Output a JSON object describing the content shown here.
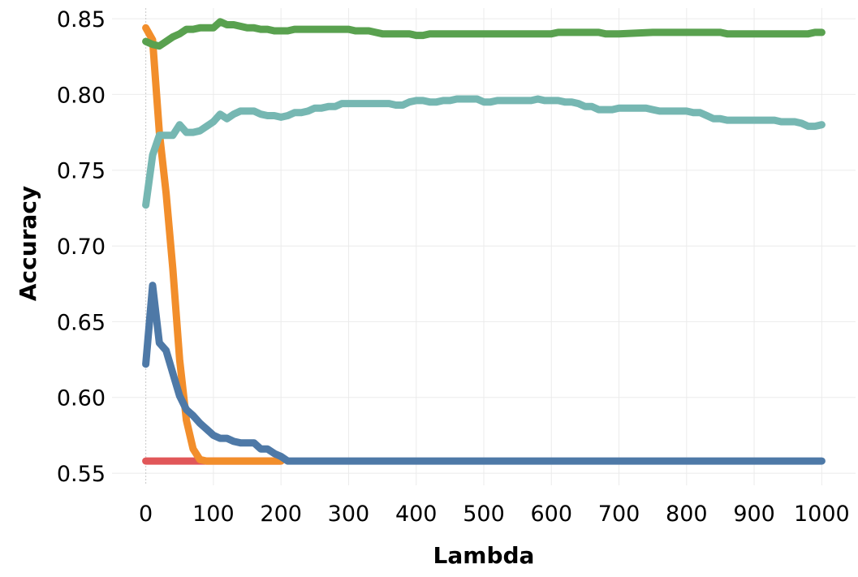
{
  "chart_data": {
    "type": "line",
    "title": "",
    "xlabel": "Lambda",
    "ylabel": "Accuracy",
    "xlim": [
      -50,
      1050
    ],
    "ylim": [
      0.542,
      0.857
    ],
    "xticks": [
      0,
      100,
      200,
      300,
      400,
      500,
      600,
      700,
      800,
      900,
      1000
    ],
    "yticks": [
      0.55,
      0.6,
      0.65,
      0.7,
      0.75,
      0.8,
      0.85
    ],
    "ytick_labels": [
      "0.55",
      "0.60",
      "0.65",
      "0.70",
      "0.75",
      "0.80",
      "0.85"
    ],
    "grid": true,
    "legend": "none",
    "series": [
      {
        "color": "#e15759",
        "x": [
          0,
          100,
          200
        ],
        "y": [
          0.558,
          0.558,
          0.558
        ]
      },
      {
        "color": "#f28e2b",
        "x": [
          0,
          10,
          20,
          30,
          40,
          50,
          60,
          70,
          80,
          90,
          100,
          150,
          200
        ],
        "y": [
          0.844,
          0.836,
          0.775,
          0.735,
          0.685,
          0.625,
          0.585,
          0.566,
          0.559,
          0.558,
          0.558,
          0.558,
          0.558
        ]
      },
      {
        "color": "#4e79a7",
        "x": [
          0,
          10,
          20,
          30,
          40,
          50,
          60,
          70,
          80,
          90,
          100,
          110,
          120,
          130,
          140,
          150,
          160,
          170,
          180,
          190,
          200,
          210,
          220,
          250,
          300,
          400,
          500,
          600,
          700,
          800,
          900,
          1000
        ],
        "y": [
          0.622,
          0.674,
          0.636,
          0.631,
          0.616,
          0.601,
          0.592,
          0.588,
          0.583,
          0.579,
          0.575,
          0.573,
          0.573,
          0.571,
          0.57,
          0.57,
          0.57,
          0.566,
          0.566,
          0.563,
          0.561,
          0.558,
          0.558,
          0.558,
          0.558,
          0.558,
          0.558,
          0.558,
          0.558,
          0.558,
          0.558,
          0.558
        ]
      },
      {
        "color": "#76b7b2",
        "x": [
          0,
          10,
          20,
          30,
          40,
          50,
          60,
          70,
          80,
          90,
          100,
          110,
          120,
          130,
          140,
          150,
          160,
          170,
          180,
          190,
          200,
          210,
          220,
          230,
          240,
          250,
          260,
          270,
          280,
          290,
          300,
          310,
          320,
          330,
          340,
          350,
          360,
          370,
          380,
          390,
          400,
          410,
          420,
          430,
          440,
          450,
          460,
          470,
          480,
          490,
          500,
          510,
          520,
          530,
          540,
          550,
          560,
          570,
          580,
          590,
          600,
          610,
          620,
          630,
          640,
          650,
          660,
          670,
          680,
          690,
          700,
          710,
          720,
          730,
          740,
          750,
          760,
          770,
          780,
          790,
          800,
          810,
          820,
          830,
          840,
          850,
          860,
          870,
          880,
          890,
          900,
          910,
          920,
          930,
          940,
          950,
          960,
          970,
          980,
          990,
          1000
        ],
        "y": [
          0.727,
          0.76,
          0.773,
          0.773,
          0.773,
          0.78,
          0.775,
          0.775,
          0.776,
          0.779,
          0.782,
          0.787,
          0.784,
          0.787,
          0.789,
          0.789,
          0.789,
          0.787,
          0.786,
          0.786,
          0.785,
          0.786,
          0.788,
          0.788,
          0.789,
          0.791,
          0.791,
          0.792,
          0.792,
          0.794,
          0.794,
          0.794,
          0.794,
          0.794,
          0.794,
          0.794,
          0.794,
          0.793,
          0.793,
          0.795,
          0.796,
          0.796,
          0.795,
          0.795,
          0.796,
          0.796,
          0.797,
          0.797,
          0.797,
          0.797,
          0.795,
          0.795,
          0.796,
          0.796,
          0.796,
          0.796,
          0.796,
          0.796,
          0.797,
          0.796,
          0.796,
          0.796,
          0.795,
          0.795,
          0.794,
          0.792,
          0.792,
          0.79,
          0.79,
          0.79,
          0.791,
          0.791,
          0.791,
          0.791,
          0.791,
          0.79,
          0.789,
          0.789,
          0.789,
          0.789,
          0.789,
          0.788,
          0.788,
          0.786,
          0.784,
          0.784,
          0.783,
          0.783,
          0.783,
          0.783,
          0.783,
          0.783,
          0.783,
          0.783,
          0.782,
          0.782,
          0.782,
          0.781,
          0.779,
          0.779,
          0.78
        ]
      },
      {
        "color": "#59a14f",
        "x": [
          0,
          10,
          20,
          30,
          40,
          50,
          60,
          70,
          80,
          90,
          100,
          110,
          120,
          130,
          140,
          150,
          160,
          170,
          180,
          190,
          200,
          210,
          220,
          250,
          300,
          310,
          320,
          330,
          340,
          350,
          360,
          370,
          380,
          390,
          400,
          410,
          420,
          430,
          440,
          450,
          500,
          550,
          600,
          610,
          620,
          630,
          640,
          650,
          660,
          670,
          680,
          690,
          700,
          750,
          800,
          850,
          860,
          870,
          880,
          890,
          900,
          950,
          980,
          990,
          1000
        ],
        "y": [
          0.835,
          0.833,
          0.832,
          0.835,
          0.838,
          0.84,
          0.843,
          0.843,
          0.844,
          0.844,
          0.844,
          0.848,
          0.846,
          0.846,
          0.845,
          0.844,
          0.844,
          0.843,
          0.843,
          0.842,
          0.842,
          0.842,
          0.843,
          0.843,
          0.843,
          0.842,
          0.842,
          0.842,
          0.841,
          0.84,
          0.84,
          0.84,
          0.84,
          0.84,
          0.839,
          0.839,
          0.84,
          0.84,
          0.84,
          0.84,
          0.84,
          0.84,
          0.84,
          0.841,
          0.841,
          0.841,
          0.841,
          0.841,
          0.841,
          0.841,
          0.84,
          0.84,
          0.84,
          0.841,
          0.841,
          0.841,
          0.84,
          0.84,
          0.84,
          0.84,
          0.84,
          0.84,
          0.84,
          0.841,
          0.841
        ]
      }
    ]
  }
}
